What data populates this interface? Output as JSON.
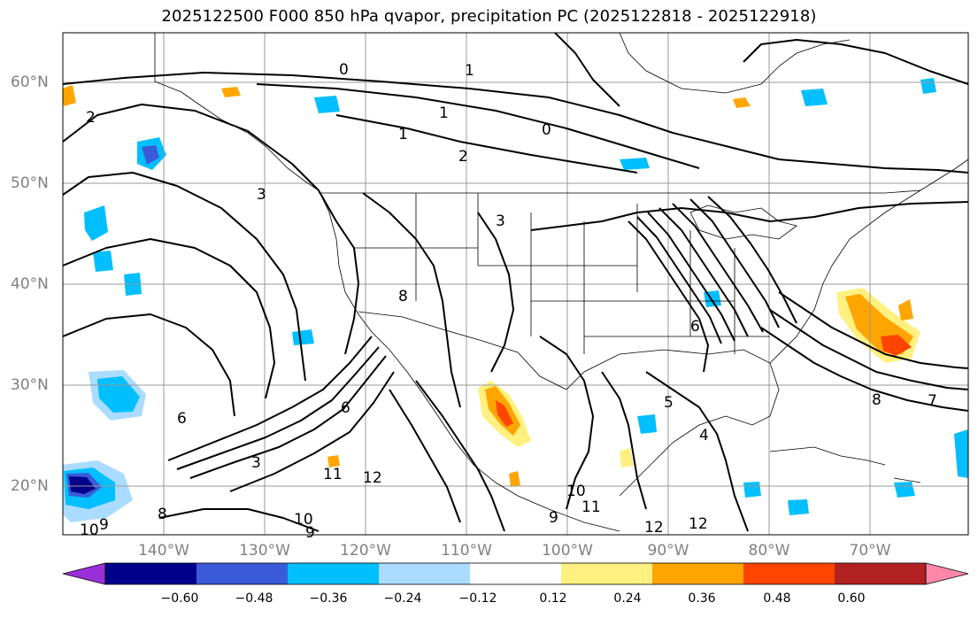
{
  "title": "2025122500 F000 850 hPa qvapor, precipitation PC (2025122818 - 2025122918)",
  "latitude_labels": [
    "60°N",
    "50°N",
    "40°N",
    "30°N",
    "20°N"
  ],
  "longitude_labels": [
    "140°W",
    "130°W",
    "120°W",
    "110°W",
    "100°W",
    "90°W",
    "80°W",
    "70°W"
  ],
  "colorbar": {
    "colors": [
      "#9b30d9",
      "#00008b",
      "#3a5bd9",
      "#00bfff",
      "#aadcff",
      "#ffffff",
      "#fff080",
      "#ffa500",
      "#ff4500",
      "#b22222",
      "#ff88aa"
    ],
    "tick_labels": [
      "−0.60",
      "−0.48",
      "−0.36",
      "−0.24",
      "−0.12",
      "0.12",
      "0.24",
      "0.36",
      "0.48",
      "0.60"
    ]
  },
  "contour_labels": [
    "1",
    "1",
    "1",
    "2",
    "2",
    "0",
    "0",
    "6",
    "6",
    "6",
    "7",
    "8",
    "8",
    "8",
    "9",
    "9",
    "9",
    "10",
    "10",
    "10",
    "11",
    "11",
    "12",
    "12",
    "12",
    "5",
    "4",
    "3",
    "3",
    "3"
  ]
}
